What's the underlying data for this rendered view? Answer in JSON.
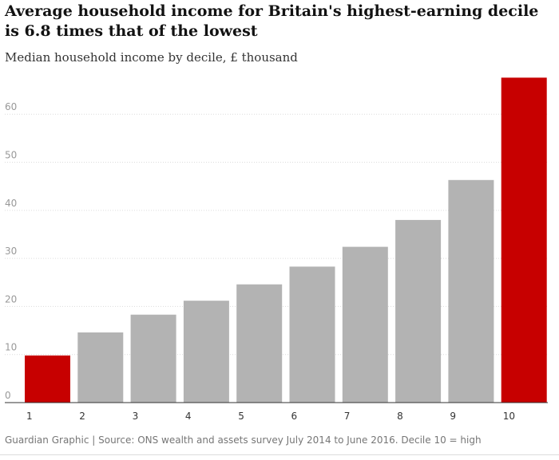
{
  "title": "Average household income for Britain's highest-earning decile is 6.8 times that of the lowest",
  "subtitle": "Median household income by decile, £ thousand",
  "footer": "Guardian Graphic | Source: ONS wealth and assets survey July 2014 to June 2016. Decile 10 = high",
  "colors": {
    "highlight": "#c70000",
    "bar": "#b3b3b3",
    "grid": "#dcdcdc",
    "axis": "#333333"
  },
  "chart_data": {
    "type": "bar",
    "categories": [
      "1",
      "2",
      "3",
      "4",
      "5",
      "6",
      "7",
      "8",
      "9",
      "10"
    ],
    "values": [
      9.8,
      14.6,
      18.3,
      21.2,
      24.6,
      28.3,
      32.4,
      38.0,
      46.3,
      67.6
    ],
    "highlighted": [
      "1",
      "10"
    ],
    "title": "Average household income for Britain's highest-earning decile is 6.8 times that of the lowest",
    "xlabel": "",
    "ylabel": "",
    "ylim": [
      0,
      68
    ],
    "yticks": [
      0,
      10,
      20,
      30,
      40,
      50,
      60
    ],
    "grid": true
  }
}
